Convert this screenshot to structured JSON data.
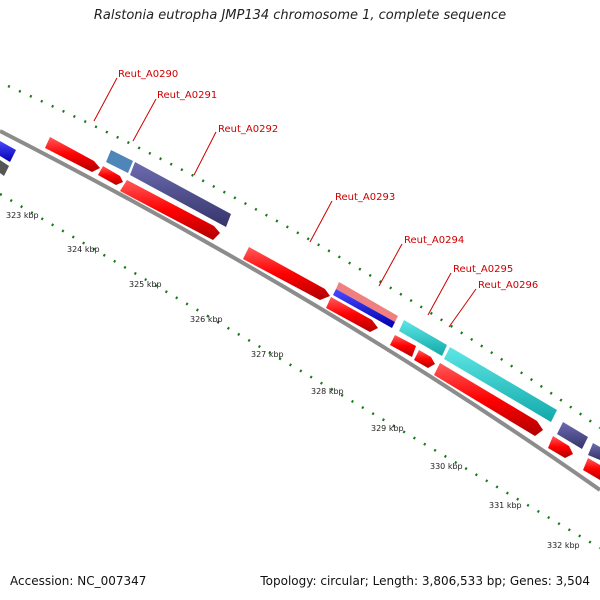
{
  "title": "Ralstonia eutropha JMP134 chromosome 1, complete sequence",
  "accession": "Accession: NC_007347",
  "summary": "Topology: circular; Length: 3,806,533 bp; Genes: 3,504",
  "ticks": [
    {
      "label": "323 kbp"
    },
    {
      "label": "324 kbp"
    },
    {
      "label": "325 kbp"
    },
    {
      "label": "326 kbp"
    },
    {
      "label": "327 kbp"
    },
    {
      "label": "328 kbp"
    },
    {
      "label": "329 kbp"
    },
    {
      "label": "330 kbp"
    },
    {
      "label": "331 kbp"
    },
    {
      "label": "332 kbp"
    }
  ],
  "gene_labels": [
    {
      "label": "Reut_A0290"
    },
    {
      "label": "Reut_A0291"
    },
    {
      "label": "Reut_A0292"
    },
    {
      "label": "Reut_A0293"
    },
    {
      "label": "Reut_A0294"
    },
    {
      "label": "Reut_A0295"
    },
    {
      "label": "Reut_A0296"
    }
  ],
  "colors": {
    "backbone": "#8c8c8c",
    "cds": "#ff0000",
    "purple": "#4b4a8c",
    "cyan": "#1ecfcf",
    "blue": "#0000ff",
    "steel": "#4f86b8",
    "salmon": "#f08080",
    "dark_gray": "#555555",
    "tick_green": "#1a7a1a",
    "label_red": "#cc0000"
  }
}
